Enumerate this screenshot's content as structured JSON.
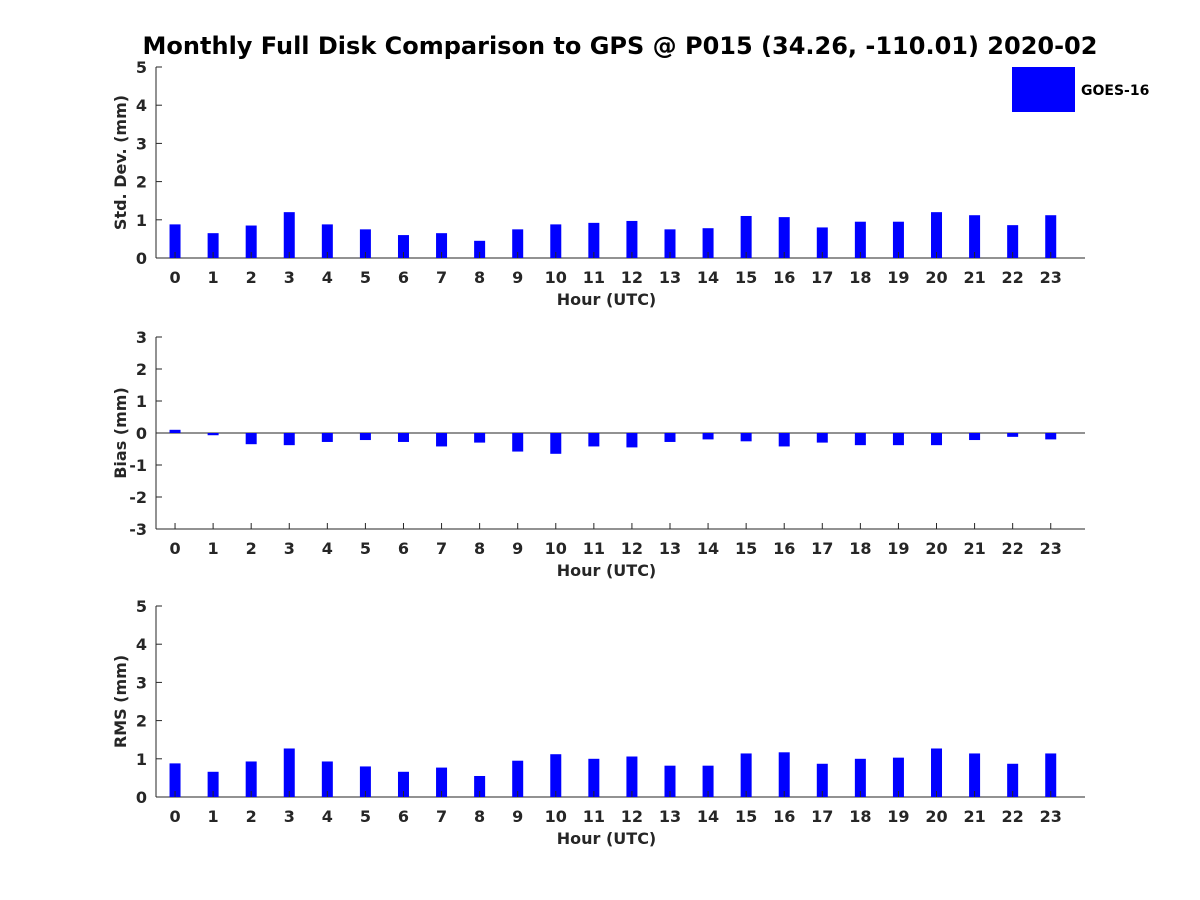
{
  "title": "Monthly Full Disk Comparison to GPS @ P015 (34.26, -110.01) 2020-02",
  "colors": {
    "bar": "#0000ff"
  },
  "chart_data": [
    {
      "type": "bar",
      "name": "stddev",
      "series_name": "GOES-16",
      "xlabel": "Hour (UTC)",
      "ylabel": "Std. Dev. (mm)",
      "ylim": [
        0,
        5
      ],
      "yticks": [
        0,
        1,
        2,
        3,
        4,
        5
      ],
      "categories": [
        "0",
        "1",
        "2",
        "3",
        "4",
        "5",
        "6",
        "7",
        "8",
        "9",
        "10",
        "11",
        "12",
        "13",
        "14",
        "15",
        "16",
        "17",
        "18",
        "19",
        "20",
        "21",
        "22",
        "23"
      ],
      "values": [
        0.88,
        0.65,
        0.85,
        1.2,
        0.88,
        0.75,
        0.6,
        0.65,
        0.45,
        0.75,
        0.88,
        0.92,
        0.97,
        0.75,
        0.78,
        1.1,
        1.07,
        0.8,
        0.95,
        0.95,
        1.2,
        1.12,
        0.86,
        1.12
      ]
    },
    {
      "type": "bar",
      "name": "bias",
      "series_name": "GOES-16",
      "xlabel": "Hour (UTC)",
      "ylabel": "Bias (mm)",
      "ylim": [
        -3,
        3
      ],
      "yticks": [
        -3,
        -2,
        -1,
        0,
        1,
        2,
        3
      ],
      "categories": [
        "0",
        "1",
        "2",
        "3",
        "4",
        "5",
        "6",
        "7",
        "8",
        "9",
        "10",
        "11",
        "12",
        "13",
        "14",
        "15",
        "16",
        "17",
        "18",
        "19",
        "20",
        "21",
        "22",
        "23"
      ],
      "values": [
        0.1,
        -0.07,
        -0.35,
        -0.38,
        -0.28,
        -0.22,
        -0.28,
        -0.42,
        -0.3,
        -0.58,
        -0.65,
        -0.42,
        -0.45,
        -0.28,
        -0.2,
        -0.26,
        -0.42,
        -0.3,
        -0.38,
        -0.38,
        -0.38,
        -0.22,
        -0.12,
        -0.2
      ]
    },
    {
      "type": "bar",
      "name": "rms",
      "series_name": "GOES-16",
      "xlabel": "Hour (UTC)",
      "ylabel": "RMS (mm)",
      "ylim": [
        0,
        5
      ],
      "yticks": [
        0,
        1,
        2,
        3,
        4,
        5
      ],
      "categories": [
        "0",
        "1",
        "2",
        "3",
        "4",
        "5",
        "6",
        "7",
        "8",
        "9",
        "10",
        "11",
        "12",
        "13",
        "14",
        "15",
        "16",
        "17",
        "18",
        "19",
        "20",
        "21",
        "22",
        "23"
      ],
      "values": [
        0.88,
        0.66,
        0.93,
        1.27,
        0.93,
        0.8,
        0.66,
        0.77,
        0.55,
        0.95,
        1.12,
        1.0,
        1.06,
        0.82,
        0.82,
        1.14,
        1.17,
        0.87,
        1.0,
        1.03,
        1.27,
        1.14,
        0.87,
        1.14
      ]
    }
  ],
  "legend": {
    "label": "GOES-16",
    "placement": "top-right"
  }
}
